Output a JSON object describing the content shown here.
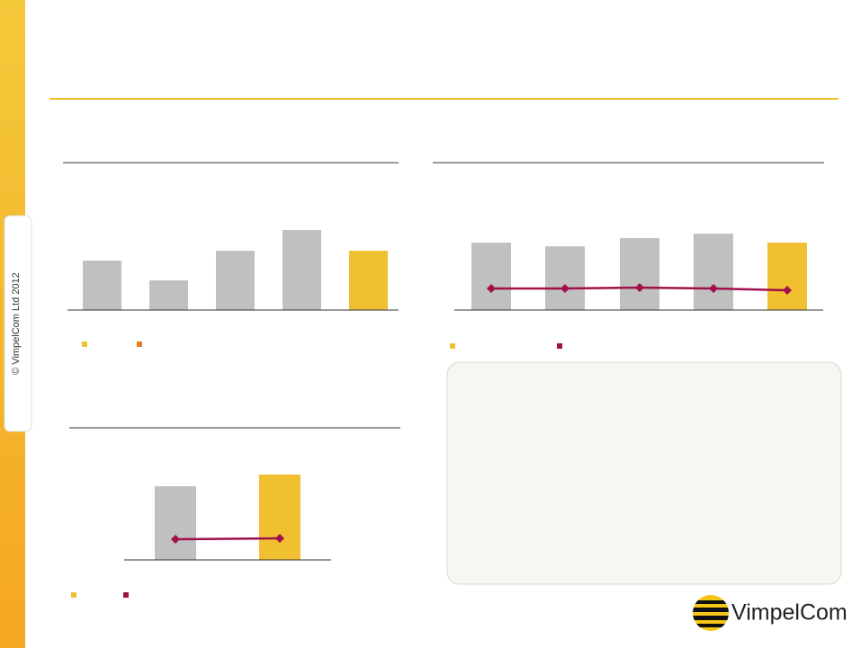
{
  "chart_data": [
    {
      "type": "bar",
      "categories": [
        null,
        null,
        null,
        null,
        null
      ],
      "series": [
        {
          "values": [
            55,
            33,
            66,
            89,
            66
          ],
          "colors": [
            "#c0c0c0",
            "#c0c0c0",
            "#c0c0c0",
            "#c0c0c0",
            "#f0c030"
          ]
        }
      ],
      "legend_colors": [
        "#f0c030",
        "#e08020"
      ]
    },
    {
      "type": "bar",
      "categories": [
        null,
        null,
        null,
        null,
        null
      ],
      "series": [
        {
          "values": [
            75,
            71,
            80,
            85,
            75
          ],
          "colors": [
            "#c0c0c0",
            "#c0c0c0",
            "#c0c0c0",
            "#c0c0c0",
            "#f0c030"
          ]
        },
        {
          "values": [
            24,
            24,
            25,
            24,
            22
          ],
          "color": "#a0104a",
          "line": true
        }
      ],
      "legend_colors": [
        "#f0c030",
        "#a0104a"
      ]
    },
    {
      "type": "bar",
      "categories": [
        null,
        null
      ],
      "series": [
        {
          "values": [
            82,
            95
          ],
          "colors": [
            "#c0c0c0",
            "#f0c030"
          ]
        },
        {
          "values": [
            23,
            24
          ],
          "color": "#a0104a",
          "line": true
        }
      ],
      "legend_colors": [
        "#f0c030",
        "#a0104a"
      ]
    }
  ],
  "copyright": "© VimpelCom Ltd 2012",
  "logo": "VimpelCom"
}
